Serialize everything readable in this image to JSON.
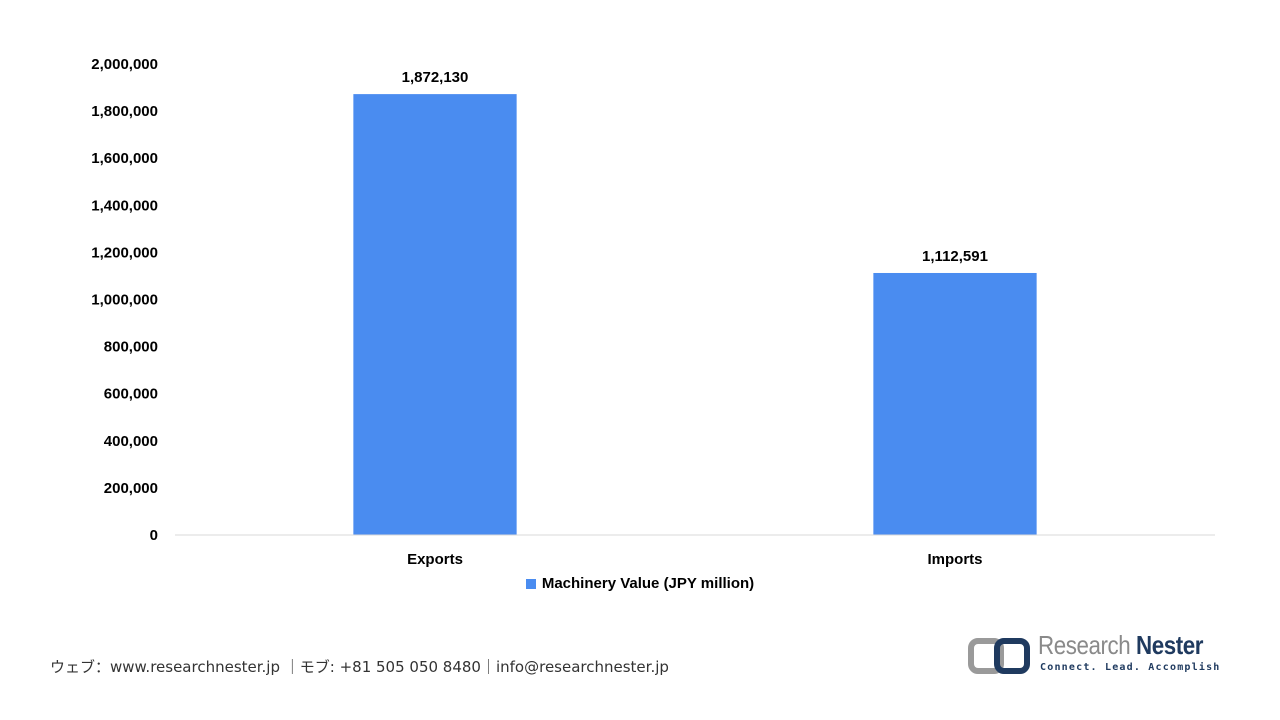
{
  "chart_data": {
    "type": "bar",
    "categories": [
      "Exports",
      "Imports"
    ],
    "series": [
      {
        "name": "Machinery  Value (JPY million)",
        "values": [
          1872130,
          1112591
        ],
        "color": "#4a8cf0"
      }
    ],
    "data_labels": [
      "1,872,130",
      "1,112,591"
    ],
    "yticks": [
      "0",
      "200,000",
      "400,000",
      "600,000",
      "800,000",
      "1,000,000",
      "1,200,000",
      "1,400,000",
      "1,600,000",
      "1,800,000",
      "2,000,000"
    ],
    "ylim": [
      0,
      2000000
    ],
    "title": "",
    "xlabel": "",
    "ylabel": "",
    "legend_position": "bottom",
    "grid": false
  },
  "footer": {
    "contact": "ウェブ：www.researchnester.jp ｜モブ: +81 505 050 8480｜info@researchnester.jp"
  },
  "logo": {
    "name_part1": "Research",
    "name_part2": "Nester",
    "tagline": "Connect. Lead. Accomplish"
  }
}
